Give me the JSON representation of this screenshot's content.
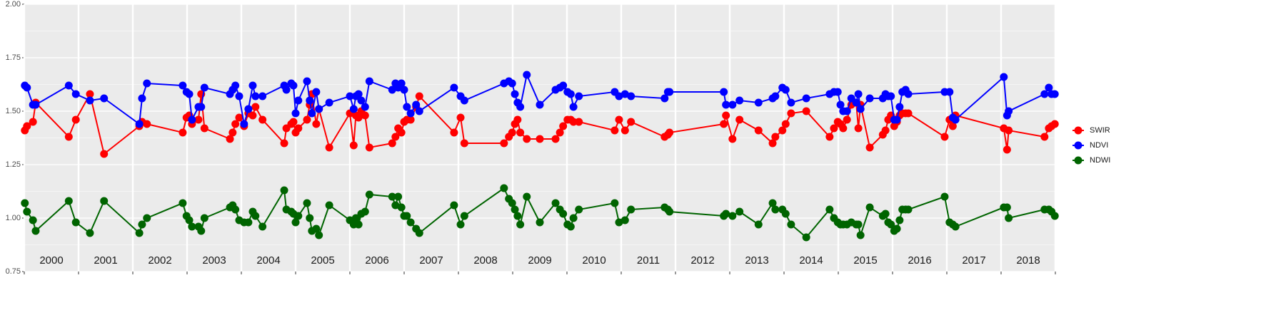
{
  "chart_data": {
    "type": "line",
    "x": [
      2000.01,
      2000.05,
      2000.16,
      2000.21,
      2000.82,
      2000.95,
      2001.21,
      2001.47,
      2002.12,
      2002.17,
      2002.26,
      2002.92,
      2002.99,
      2003.04,
      2003.09,
      2003.21,
      2003.26,
      2003.32,
      2003.79,
      2003.84,
      2003.89,
      2003.96,
      2004.05,
      2004.13,
      2004.21,
      2004.26,
      2004.39,
      2004.79,
      2004.83,
      2004.92,
      2004.96,
      2005.0,
      2005.05,
      2005.21,
      2005.26,
      2005.3,
      2005.38,
      2005.43,
      2005.62,
      2006.0,
      2006.07,
      2006.11,
      2006.16,
      2006.21,
      2006.28,
      2006.36,
      2006.78,
      2006.84,
      2006.89,
      2006.95,
      2007.0,
      2007.05,
      2007.12,
      2007.22,
      2007.28,
      2007.92,
      2008.04,
      2008.11,
      2008.84,
      2008.93,
      2008.99,
      2009.04,
      2009.09,
      2009.14,
      2009.26,
      2009.5,
      2009.79,
      2009.87,
      2009.93,
      2010.01,
      2010.07,
      2010.12,
      2010.22,
      2010.88,
      2010.96,
      2011.07,
      2011.18,
      2011.8,
      2011.86,
      2011.89,
      2012.89,
      2012.93,
      2013.05,
      2013.18,
      2013.53,
      2013.79,
      2013.84,
      2013.97,
      2014.03,
      2014.13,
      2014.41,
      2014.84,
      2014.92,
      2014.99,
      2015.04,
      2015.09,
      2015.16,
      2015.24,
      2015.33,
      2015.37,
      2015.41,
      2015.58,
      2015.82,
      2015.87,
      2015.92,
      2015.97,
      2016.03,
      2016.08,
      2016.13,
      2016.18,
      2016.24,
      2016.29,
      2016.96,
      2017.05,
      2017.11,
      2017.16,
      2018.05,
      2018.11,
      2018.14,
      2018.8,
      2018.88,
      2018.93,
      2018.99
    ],
    "series": [
      {
        "name": "SWIR",
        "color": "#ff0000",
        "values": [
          1.41,
          1.43,
          1.45,
          1.54,
          1.38,
          1.46,
          1.58,
          1.3,
          1.43,
          1.45,
          1.44,
          1.4,
          1.47,
          1.48,
          1.44,
          1.46,
          1.58,
          1.42,
          1.37,
          1.4,
          1.44,
          1.47,
          1.43,
          1.49,
          1.48,
          1.52,
          1.46,
          1.35,
          1.42,
          1.44,
          1.45,
          1.4,
          1.42,
          1.46,
          1.53,
          1.58,
          1.44,
          1.51,
          1.33,
          1.49,
          1.34,
          1.48,
          1.47,
          1.5,
          1.48,
          1.33,
          1.35,
          1.38,
          1.42,
          1.4,
          1.45,
          1.46,
          1.46,
          1.52,
          1.57,
          1.4,
          1.47,
          1.35,
          1.35,
          1.38,
          1.4,
          1.44,
          1.46,
          1.4,
          1.37,
          1.37,
          1.37,
          1.4,
          1.43,
          1.46,
          1.46,
          1.45,
          1.45,
          1.41,
          1.46,
          1.41,
          1.45,
          1.38,
          1.39,
          1.4,
          1.44,
          1.48,
          1.37,
          1.46,
          1.41,
          1.35,
          1.38,
          1.41,
          1.44,
          1.49,
          1.5,
          1.38,
          1.42,
          1.45,
          1.44,
          1.42,
          1.46,
          1.53,
          1.54,
          1.42,
          1.53,
          1.33,
          1.39,
          1.41,
          1.46,
          1.48,
          1.43,
          1.45,
          1.48,
          1.49,
          1.49,
          1.49,
          1.38,
          1.46,
          1.43,
          1.48,
          1.42,
          1.32,
          1.41,
          1.38,
          1.42,
          1.43,
          1.44
        ]
      },
      {
        "name": "NDVI",
        "color": "#0000ff",
        "values": [
          1.62,
          1.61,
          1.53,
          1.53,
          1.62,
          1.58,
          1.55,
          1.56,
          1.44,
          1.56,
          1.63,
          1.62,
          1.59,
          1.58,
          1.46,
          1.52,
          1.52,
          1.61,
          1.58,
          1.6,
          1.62,
          1.57,
          1.44,
          1.51,
          1.62,
          1.57,
          1.57,
          1.62,
          1.6,
          1.63,
          1.62,
          1.49,
          1.55,
          1.64,
          1.55,
          1.49,
          1.59,
          1.51,
          1.54,
          1.57,
          1.51,
          1.57,
          1.58,
          1.55,
          1.52,
          1.64,
          1.6,
          1.63,
          1.61,
          1.63,
          1.6,
          1.52,
          1.49,
          1.53,
          1.5,
          1.61,
          1.57,
          1.55,
          1.63,
          1.64,
          1.63,
          1.58,
          1.54,
          1.52,
          1.67,
          1.53,
          1.6,
          1.61,
          1.62,
          1.59,
          1.58,
          1.52,
          1.57,
          1.59,
          1.57,
          1.58,
          1.57,
          1.56,
          1.59,
          1.59,
          1.59,
          1.53,
          1.53,
          1.55,
          1.54,
          1.56,
          1.57,
          1.61,
          1.6,
          1.54,
          1.56,
          1.58,
          1.59,
          1.59,
          1.53,
          1.5,
          1.5,
          1.56,
          1.54,
          1.58,
          1.51,
          1.56,
          1.56,
          1.58,
          1.57,
          1.57,
          1.46,
          1.46,
          1.52,
          1.59,
          1.6,
          1.58,
          1.59,
          1.59,
          1.47,
          1.46,
          1.66,
          1.48,
          1.5,
          1.58,
          1.61,
          1.58,
          1.58
        ]
      },
      {
        "name": "NDWI",
        "color": "#006400",
        "values": [
          1.07,
          1.03,
          0.99,
          0.94,
          1.08,
          0.98,
          0.93,
          1.08,
          0.93,
          0.97,
          1.0,
          1.07,
          1.01,
          0.99,
          0.96,
          0.96,
          0.94,
          1.0,
          1.05,
          1.06,
          1.04,
          0.99,
          0.98,
          0.98,
          1.03,
          1.01,
          0.96,
          1.13,
          1.04,
          1.03,
          1.02,
          0.98,
          1.01,
          1.07,
          1.0,
          0.94,
          0.95,
          0.92,
          1.06,
          0.99,
          0.97,
          1.0,
          0.97,
          1.02,
          1.03,
          1.11,
          1.1,
          1.06,
          1.1,
          1.05,
          1.01,
          1.01,
          0.98,
          0.95,
          0.93,
          1.06,
          0.97,
          1.01,
          1.14,
          1.09,
          1.07,
          1.04,
          1.01,
          0.97,
          1.1,
          0.98,
          1.07,
          1.04,
          1.02,
          0.97,
          0.96,
          1.0,
          1.04,
          1.07,
          0.98,
          0.99,
          1.04,
          1.05,
          1.04,
          1.03,
          1.01,
          1.02,
          1.01,
          1.03,
          0.97,
          1.07,
          1.04,
          1.04,
          1.02,
          0.97,
          0.91,
          1.04,
          1.0,
          0.98,
          0.97,
          0.97,
          0.97,
          0.98,
          0.97,
          0.97,
          0.92,
          1.05,
          1.01,
          1.02,
          0.98,
          0.97,
          0.94,
          0.95,
          0.99,
          1.04,
          1.04,
          1.04,
          1.1,
          0.98,
          0.97,
          0.96,
          1.05,
          1.05,
          1.0,
          1.04,
          1.04,
          1.03,
          1.01
        ]
      }
    ],
    "xlim": [
      2000,
      2019
    ],
    "x_boundaries": [
      2000,
      2001,
      2002,
      2003,
      2004,
      2005,
      2006,
      2007,
      2008,
      2009,
      2010,
      2011,
      2012,
      2013,
      2014,
      2015,
      2016,
      2017,
      2018,
      2019
    ],
    "xticks": [
      {
        "value": 2000.5,
        "label": "2000"
      },
      {
        "value": 2001.5,
        "label": "2001"
      },
      {
        "value": 2002.5,
        "label": "2002"
      },
      {
        "value": 2003.5,
        "label": "2003"
      },
      {
        "value": 2004.5,
        "label": "2004"
      },
      {
        "value": 2005.5,
        "label": "2005"
      },
      {
        "value": 2006.5,
        "label": "2006"
      },
      {
        "value": 2007.5,
        "label": "2007"
      },
      {
        "value": 2008.5,
        "label": "2008"
      },
      {
        "value": 2009.5,
        "label": "2009"
      },
      {
        "value": 2010.5,
        "label": "2010"
      },
      {
        "value": 2011.5,
        "label": "2011"
      },
      {
        "value": 2012.5,
        "label": "2012"
      },
      {
        "value": 2013.5,
        "label": "2013"
      },
      {
        "value": 2014.5,
        "label": "2014"
      },
      {
        "value": 2015.5,
        "label": "2015"
      },
      {
        "value": 2016.5,
        "label": "2016"
      },
      {
        "value": 2017.5,
        "label": "2017"
      },
      {
        "value": 2018.5,
        "label": "2018"
      }
    ],
    "ylim": [
      0.75,
      2.0
    ],
    "yticks": [
      {
        "value": 0.75,
        "label": "0.75"
      },
      {
        "value": 1,
        "label": "1.00"
      },
      {
        "value": 1.25,
        "label": "1.25"
      },
      {
        "value": 1.5,
        "label": "1.50"
      },
      {
        "value": 1.75,
        "label": "1.75"
      },
      {
        "value": 2,
        "label": "2.00"
      }
    ],
    "grid": true,
    "legend": "right"
  }
}
